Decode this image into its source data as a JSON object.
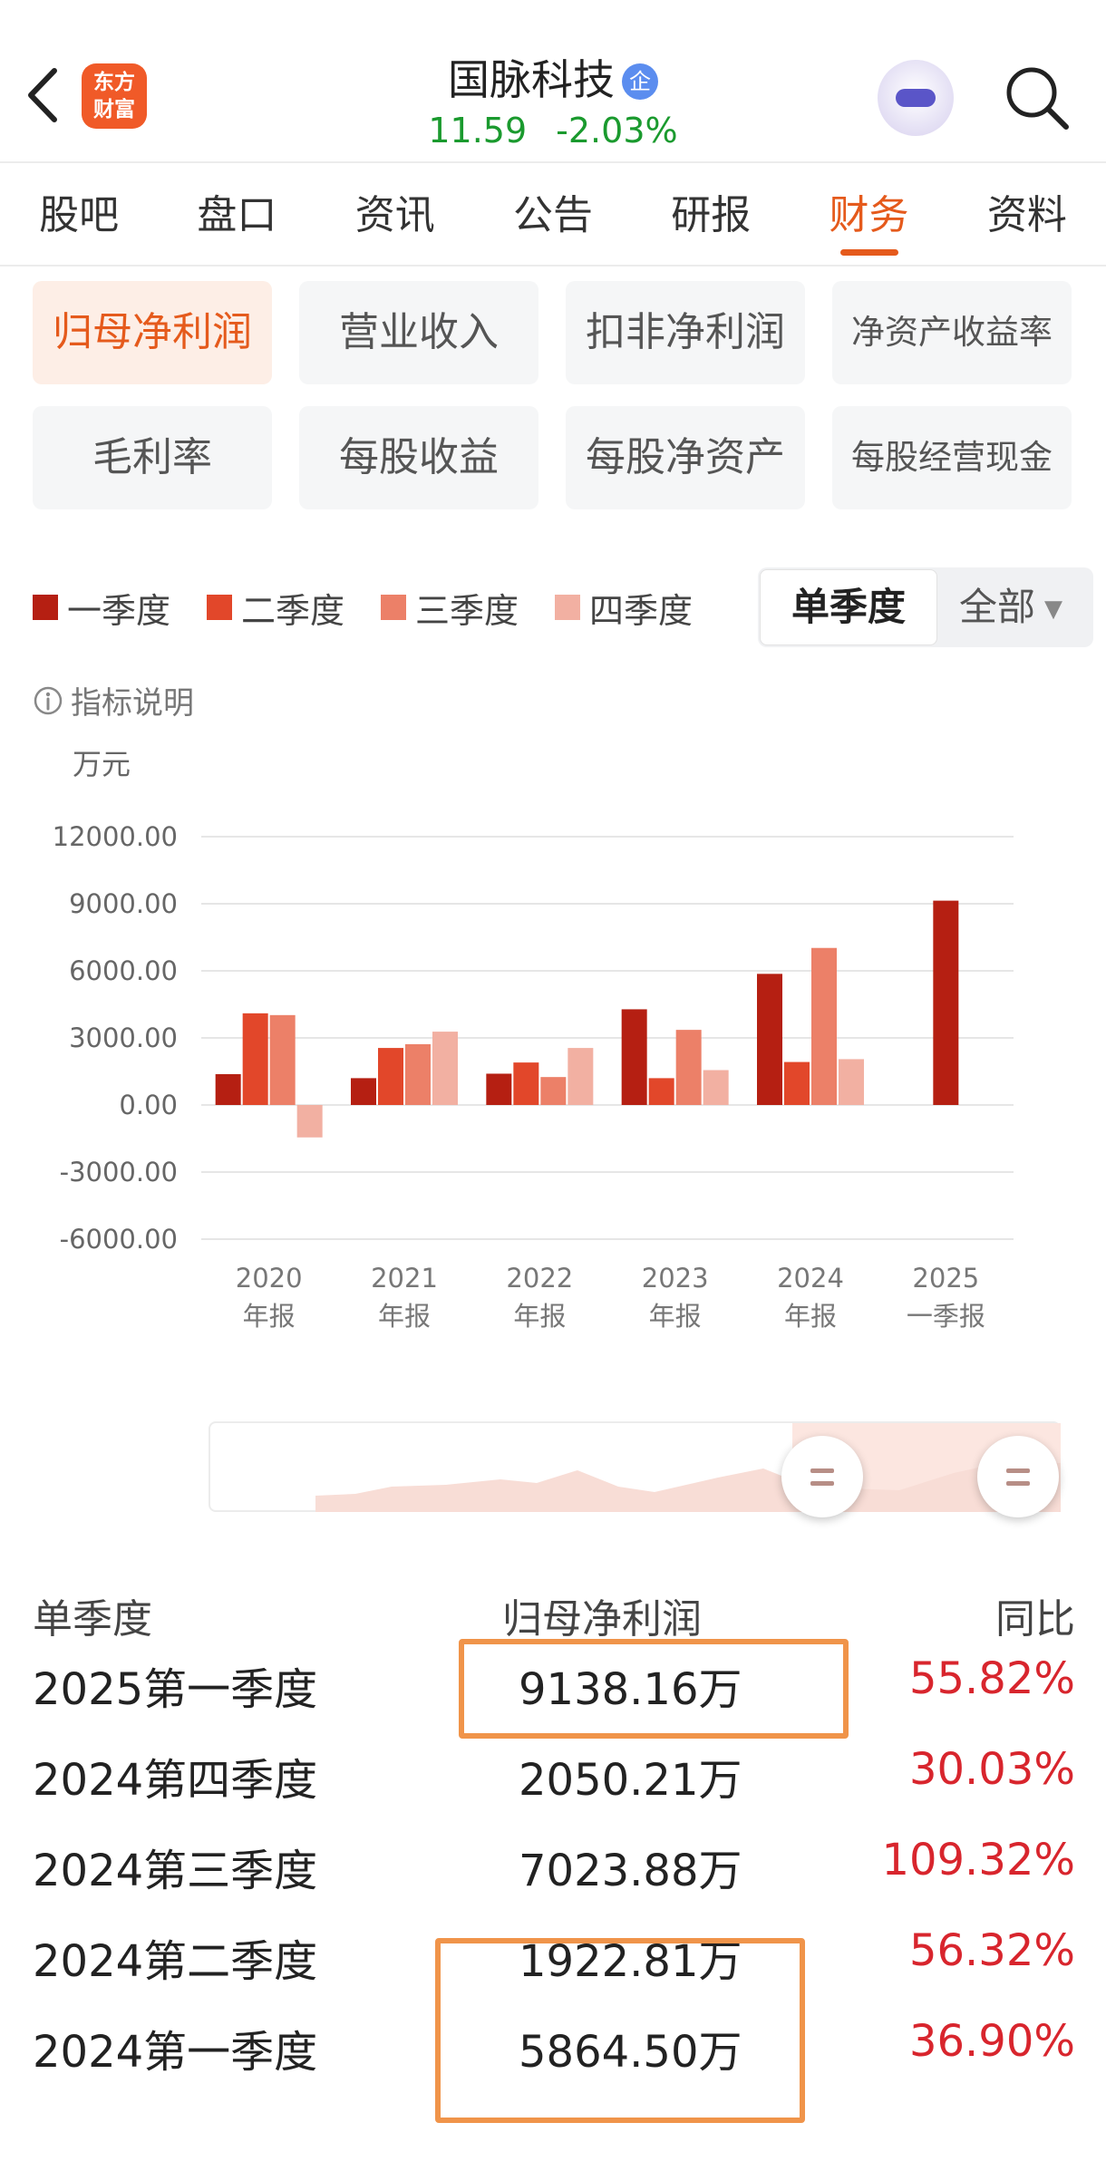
{
  "header": {
    "logo_line1": "东方",
    "logo_line2": "财富",
    "stock_name": "国脉科技",
    "badge": "企",
    "price": "11.59",
    "change": "-2.03%",
    "colors": {
      "brand": "#f05a28",
      "down": "#1a9a2e"
    }
  },
  "tabs": [
    {
      "label": "股吧"
    },
    {
      "label": "盘口"
    },
    {
      "label": "资讯"
    },
    {
      "label": "公告"
    },
    {
      "label": "研报"
    },
    {
      "label": "财务",
      "active": true
    },
    {
      "label": "资料"
    }
  ],
  "metrics": [
    {
      "label": "归母净利润",
      "active": true
    },
    {
      "label": "营业收入"
    },
    {
      "label": "扣非净利润"
    },
    {
      "label": "净资产收益率"
    },
    {
      "label": "毛利率"
    },
    {
      "label": "每股收益"
    },
    {
      "label": "每股净资产"
    },
    {
      "label": "每股经营现金"
    }
  ],
  "legend": [
    {
      "label": "一季度",
      "color": "#b51f12"
    },
    {
      "label": "二季度",
      "color": "#e2472a"
    },
    {
      "label": "三季度",
      "color": "#ec8068"
    },
    {
      "label": "四季度",
      "color": "#f2b0a2"
    }
  ],
  "period_toggle": {
    "single": "单季度",
    "all": "全部",
    "caret": "▼"
  },
  "info_label": "指标说明",
  "chart_data": {
    "type": "bar",
    "ylabel": "万元",
    "ylim": [
      -6000,
      12000
    ],
    "yticks": [
      12000,
      9000,
      6000,
      3000,
      0,
      -3000,
      -6000
    ],
    "ytick_labels": [
      "12000.00",
      "9000.00",
      "6000.00",
      "3000.00",
      "0.00",
      "-3000.00",
      "-6000.00"
    ],
    "categories": [
      "2020",
      "2021",
      "2022",
      "2023",
      "2024",
      "2025"
    ],
    "category_sublabels": [
      "年报",
      "年报",
      "年报",
      "年报",
      "年报",
      "一季报"
    ],
    "grid": true,
    "series": [
      {
        "name": "一季度",
        "values": [
          1380,
          1200,
          1400,
          4280,
          5864.5,
          9138.16
        ]
      },
      {
        "name": "二季度",
        "values": [
          4100,
          2550,
          1900,
          1200,
          1922.81,
          null
        ]
      },
      {
        "name": "三季度",
        "values": [
          4020,
          2720,
          1250,
          3360,
          7023.88,
          null
        ]
      },
      {
        "name": "四季度",
        "values": [
          -1450,
          3280,
          2550,
          1560,
          2050.21,
          null
        ]
      }
    ]
  },
  "table": {
    "headers": [
      "单季度",
      "归母净利润",
      "同比"
    ],
    "rows": [
      {
        "period": "2025第一季度",
        "value": "9138.16万",
        "yoy": "55.82%"
      },
      {
        "period": "2024第四季度",
        "value": "2050.21万",
        "yoy": "30.03%"
      },
      {
        "period": "2024第三季度",
        "value": "7023.88万",
        "yoy": "109.32%"
      },
      {
        "period": "2024第二季度",
        "value": "1922.81万",
        "yoy": "56.32%"
      },
      {
        "period": "2024第一季度",
        "value": "5864.50万",
        "yoy": "36.90%"
      }
    ],
    "yoy_color": "#d8252d"
  }
}
